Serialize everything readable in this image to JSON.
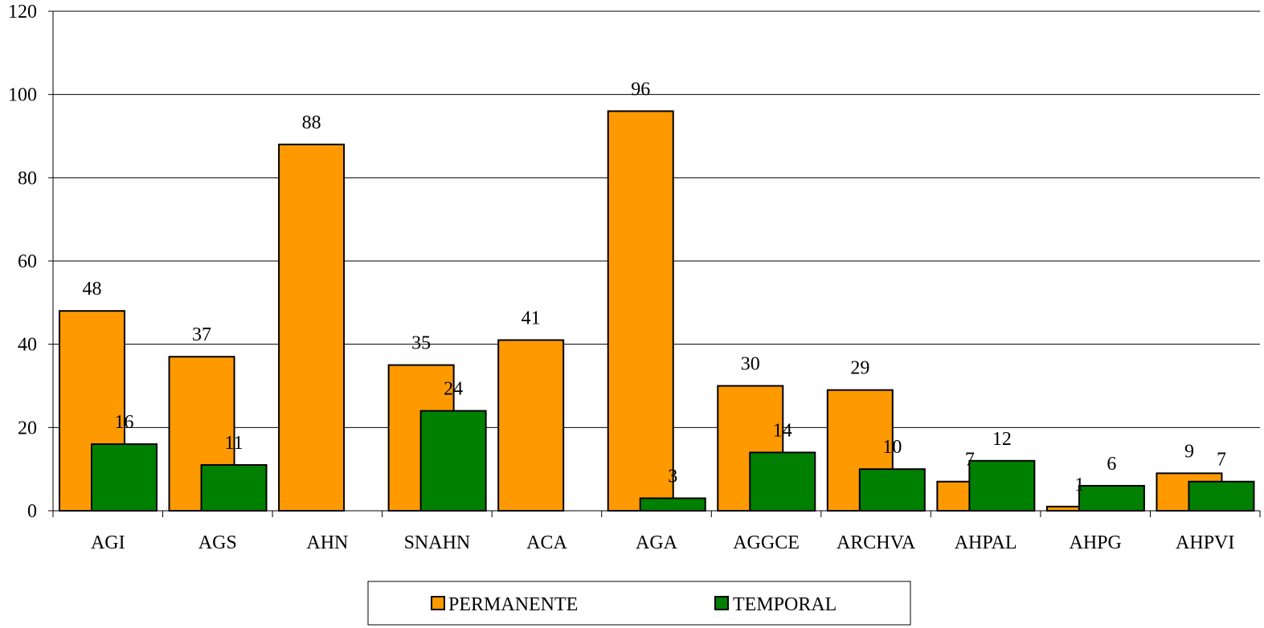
{
  "chart_data": {
    "type": "bar",
    "title": "",
    "xlabel": "",
    "ylabel": "",
    "categories": [
      "AGI",
      "AGS",
      "AHN",
      "SNAHN",
      "ACA",
      "AGA",
      "AGGCE",
      "ARCHVA",
      "AHPAL",
      "AHPG",
      "AHPVI"
    ],
    "series": [
      {
        "name": "PERMANENTE",
        "color": "#FF9900",
        "values": [
          48,
          37,
          88,
          35,
          41,
          96,
          30,
          29,
          7,
          1,
          9
        ],
        "labels": [
          "48",
          "37",
          "88",
          "35",
          "41",
          "96",
          "30",
          "29",
          "7",
          "1",
          "9"
        ]
      },
      {
        "name": "TEMPORAL",
        "color": "#008000",
        "values": [
          16,
          11,
          null,
          24,
          null,
          3,
          14,
          10,
          12,
          6,
          7
        ],
        "labels": [
          "16",
          "11",
          "",
          "24",
          "",
          "3",
          "14",
          "10",
          "12",
          "6",
          "7"
        ]
      }
    ],
    "ylim": [
      0,
      120
    ],
    "yticks": [
      0,
      20,
      40,
      60,
      80,
      100,
      120
    ],
    "ytick_labels": [
      "0",
      "20",
      "40",
      "60",
      "80",
      "100",
      "120"
    ],
    "grid": true,
    "legend_position": "bottom-center"
  }
}
